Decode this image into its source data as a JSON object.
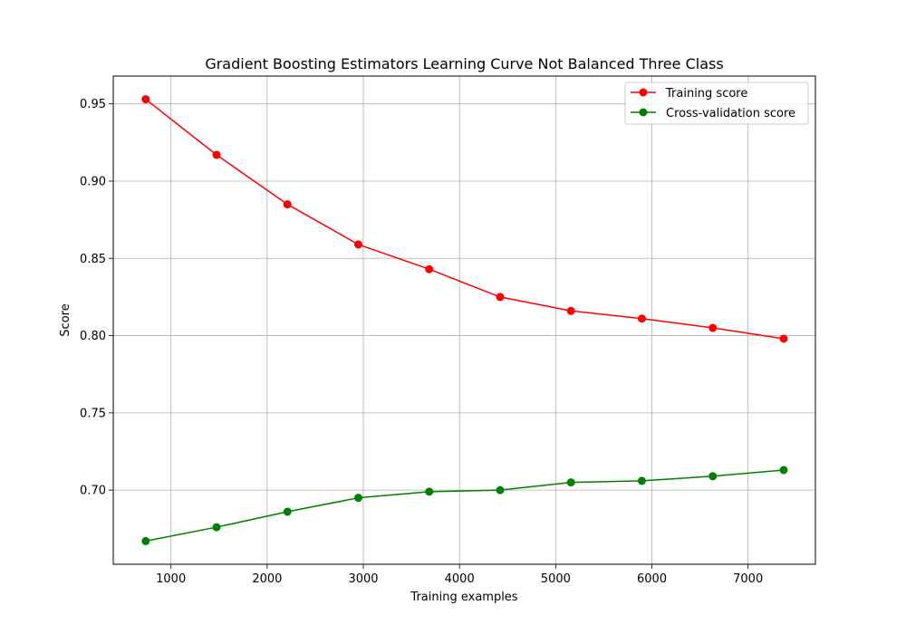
{
  "chart_data": {
    "type": "line",
    "title": "Gradient Boosting Estimators Learning Curve Not Balanced Three Class",
    "xlabel": "Training examples",
    "ylabel": "Score",
    "xlim": [
      400,
      7700
    ],
    "ylim": [
      0.652,
      0.968
    ],
    "xticks": [
      1000,
      2000,
      3000,
      4000,
      5000,
      6000,
      7000
    ],
    "yticks": [
      0.7,
      0.75,
      0.8,
      0.85,
      0.9,
      0.95
    ],
    "xtick_labels": [
      "1000",
      "2000",
      "3000",
      "4000",
      "5000",
      "6000",
      "7000"
    ],
    "ytick_labels": [
      "0.70",
      "0.75",
      "0.80",
      "0.85",
      "0.90",
      "0.95"
    ],
    "grid": true,
    "legend_position": "top-right",
    "x": [
      737,
      1474,
      2211,
      2948,
      3685,
      4422,
      5159,
      5896,
      6633,
      7370
    ],
    "series": [
      {
        "name": "Training score",
        "color": "#ff0000",
        "values": [
          0.953,
          0.917,
          0.885,
          0.859,
          0.843,
          0.825,
          0.816,
          0.811,
          0.805,
          0.798
        ]
      },
      {
        "name": "Cross-validation score",
        "color": "#008000",
        "values": [
          0.667,
          0.676,
          0.686,
          0.695,
          0.699,
          0.7,
          0.705,
          0.706,
          0.709,
          0.713
        ]
      }
    ]
  }
}
